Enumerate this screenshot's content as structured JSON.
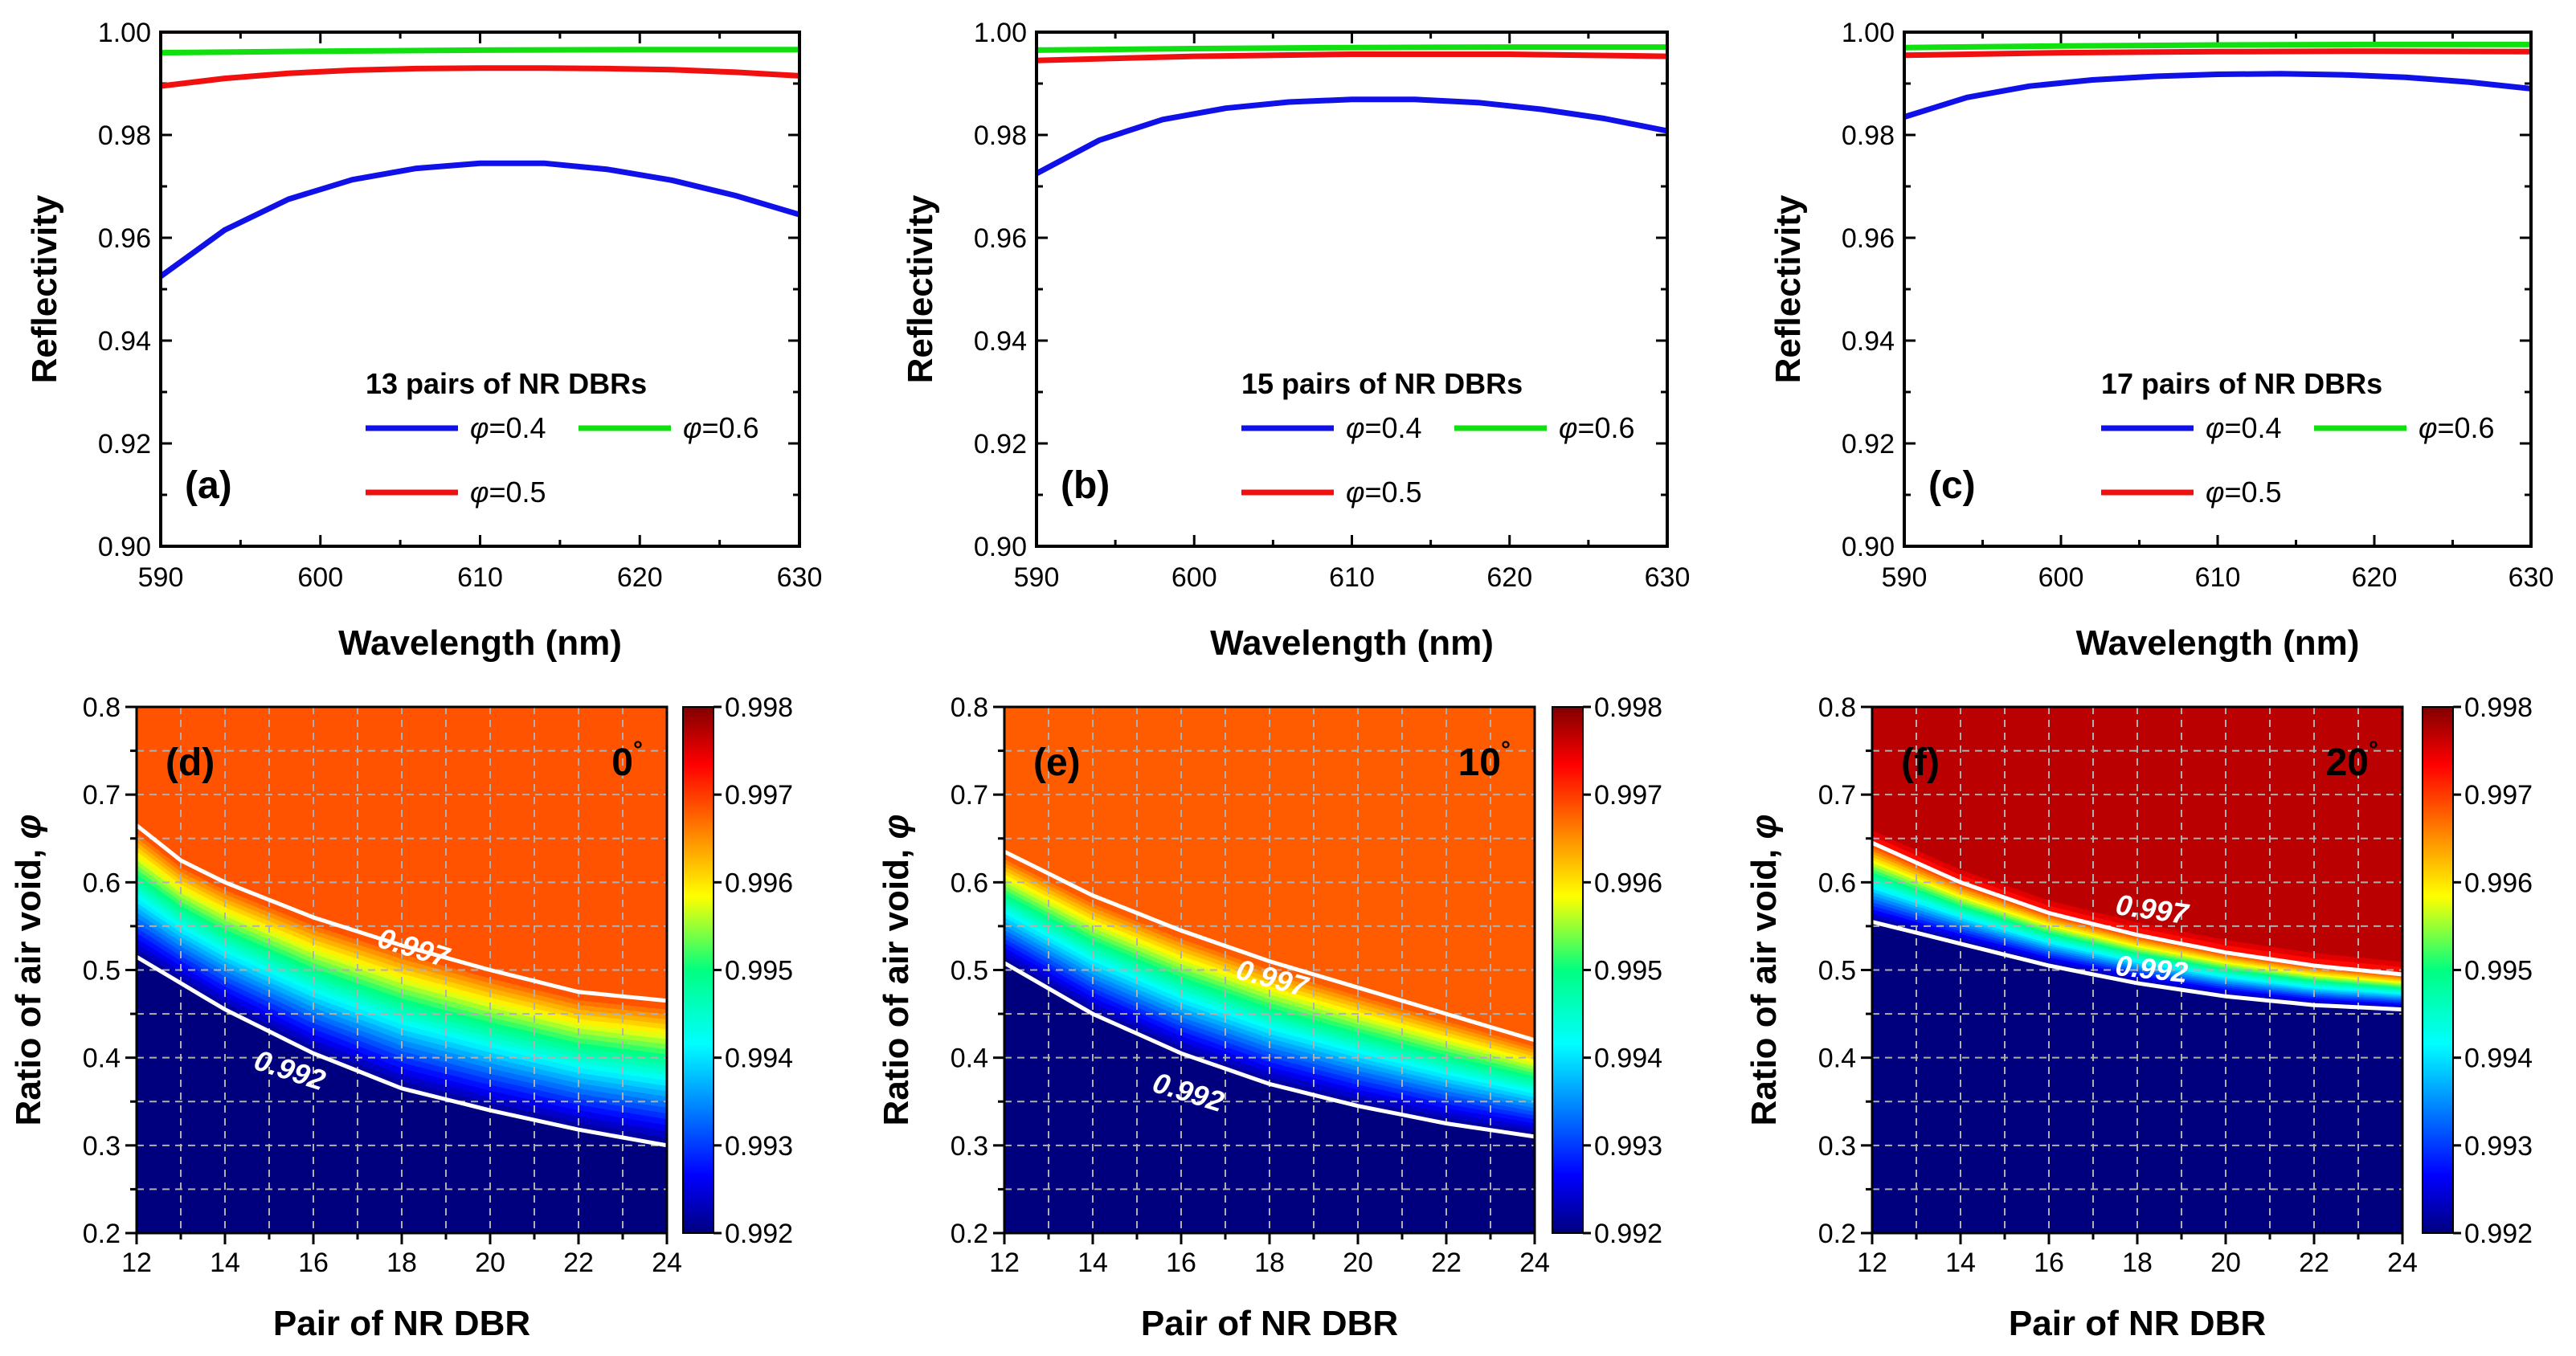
{
  "chart_data": [
    {
      "panel": "(a)",
      "type": "line",
      "xlabel": "Wavelength (nm)",
      "ylabel": "Reflectivity",
      "xlim": [
        590,
        630
      ],
      "ylim": [
        0.9,
        1.0
      ],
      "xticks": [
        "590",
        "600",
        "610",
        "620",
        "630"
      ],
      "yticks": [
        "0.90",
        "0.92",
        "0.94",
        "0.96",
        "0.98",
        "1.00"
      ],
      "legend_title": "13 pairs of NR DBRs",
      "series": [
        {
          "name": "φ=0.4",
          "symbol": "φ",
          "value_label": "=0.4",
          "color": "#1010e8",
          "x": [
            590,
            594,
            598,
            602,
            606,
            610,
            614,
            618,
            622,
            626,
            630
          ],
          "y": [
            0.9525,
            0.9615,
            0.9675,
            0.9713,
            0.9735,
            0.9745,
            0.9745,
            0.9733,
            0.9712,
            0.9682,
            0.9645
          ]
        },
        {
          "name": "φ=0.5",
          "symbol": "φ",
          "value_label": "=0.5",
          "color": "#f01010",
          "x": [
            590,
            594,
            598,
            602,
            606,
            610,
            614,
            618,
            622,
            626,
            630
          ],
          "y": [
            0.9895,
            0.991,
            0.992,
            0.9926,
            0.9929,
            0.993,
            0.993,
            0.9929,
            0.9927,
            0.9922,
            0.9915
          ]
        },
        {
          "name": "φ=0.6",
          "symbol": "φ",
          "value_label": "=0.6",
          "color": "#10e010",
          "x": [
            590,
            600,
            610,
            620,
            630
          ],
          "y": [
            0.996,
            0.9963,
            0.9965,
            0.9966,
            0.9966
          ]
        }
      ]
    },
    {
      "panel": "(b)",
      "type": "line",
      "xlabel": "Wavelength (nm)",
      "ylabel": "Reflectivity",
      "xlim": [
        590,
        630
      ],
      "ylim": [
        0.9,
        1.0
      ],
      "xticks": [
        "590",
        "600",
        "610",
        "620",
        "630"
      ],
      "yticks": [
        "0.90",
        "0.92",
        "0.94",
        "0.96",
        "0.98",
        "1.00"
      ],
      "legend_title": "15 pairs of NR DBRs",
      "series": [
        {
          "name": "φ=0.4",
          "symbol": "φ",
          "value_label": "=0.4",
          "color": "#1010e8",
          "x": [
            590,
            594,
            598,
            602,
            606,
            610,
            614,
            618,
            622,
            626,
            630
          ],
          "y": [
            0.9725,
            0.979,
            0.983,
            0.9852,
            0.9864,
            0.9869,
            0.9869,
            0.9863,
            0.985,
            0.9832,
            0.9808
          ]
        },
        {
          "name": "φ=0.5",
          "symbol": "φ",
          "value_label": "=0.5",
          "color": "#f01010",
          "x": [
            590,
            600,
            610,
            620,
            630
          ],
          "y": [
            0.9945,
            0.9953,
            0.9957,
            0.9957,
            0.9953
          ]
        },
        {
          "name": "φ=0.6",
          "symbol": "φ",
          "value_label": "=0.6",
          "color": "#10e010",
          "x": [
            590,
            600,
            610,
            620,
            630
          ],
          "y": [
            0.9965,
            0.9968,
            0.997,
            0.9971,
            0.9971
          ]
        }
      ]
    },
    {
      "panel": "(c)",
      "type": "line",
      "xlabel": "Wavelength (nm)",
      "ylabel": "Reflectivity",
      "xlim": [
        590,
        630
      ],
      "ylim": [
        0.9,
        1.0
      ],
      "xticks": [
        "590",
        "600",
        "610",
        "620",
        "630"
      ],
      "yticks": [
        "0.90",
        "0.92",
        "0.94",
        "0.96",
        "0.98",
        "1.00"
      ],
      "legend_title": "17 pairs of NR DBRs",
      "series": [
        {
          "name": "φ=0.4",
          "symbol": "φ",
          "value_label": "=0.4",
          "color": "#1010e8",
          "x": [
            590,
            594,
            598,
            602,
            606,
            610,
            614,
            618,
            622,
            626,
            630
          ],
          "y": [
            0.9835,
            0.9873,
            0.9895,
            0.9907,
            0.9914,
            0.9918,
            0.9919,
            0.9917,
            0.9912,
            0.9903,
            0.989
          ]
        },
        {
          "name": "φ=0.5",
          "symbol": "φ",
          "value_label": "=0.5",
          "color": "#f01010",
          "x": [
            590,
            600,
            610,
            620,
            630
          ],
          "y": [
            0.9955,
            0.996,
            0.9962,
            0.9963,
            0.9962
          ]
        },
        {
          "name": "φ=0.6",
          "symbol": "φ",
          "value_label": "=0.6",
          "color": "#10e010",
          "x": [
            590,
            600,
            610,
            620,
            630
          ],
          "y": [
            0.997,
            0.9973,
            0.9975,
            0.9976,
            0.9976
          ]
        }
      ]
    },
    {
      "panel": "(d)",
      "type": "heatmap",
      "angle_value": "0",
      "angle_unit": "°",
      "xlabel": "Pair of NR DBR",
      "ylabel": "Ratio of air void, ",
      "ylabel_symbol": "φ",
      "xlim": [
        12,
        24
      ],
      "ylim": [
        0.2,
        0.8
      ],
      "xticks": [
        "12",
        "14",
        "16",
        "18",
        "20",
        "22",
        "24"
      ],
      "yticks": [
        "0.2",
        "0.3",
        "0.4",
        "0.5",
        "0.6",
        "0.7",
        "0.8"
      ],
      "colorbar": {
        "range": [
          0.992,
          0.998
        ],
        "ticks": [
          "0.992",
          "0.993",
          "0.994",
          "0.995",
          "0.996",
          "0.997",
          "0.998"
        ]
      },
      "plateau_value": 0.99685,
      "contour_992": {
        "x": [
          12,
          14,
          16,
          18,
          20,
          22,
          24
        ],
        "y": [
          0.515,
          0.455,
          0.405,
          0.365,
          0.34,
          0.318,
          0.3
        ]
      },
      "contour_997": {
        "x": [
          12,
          13,
          14,
          16,
          18,
          20,
          22,
          24
        ],
        "y": [
          0.665,
          0.625,
          0.6,
          0.56,
          0.528,
          0.5,
          0.475,
          0.465
        ]
      },
      "contour_labels": [
        {
          "text": "0.997",
          "x": 18.2,
          "y": 0.515,
          "rot": 17
        },
        {
          "text": "0.992",
          "x": 15.4,
          "y": 0.375,
          "rot": 18
        }
      ]
    },
    {
      "panel": "(e)",
      "type": "heatmap",
      "angle_value": "10",
      "angle_unit": "°",
      "xlabel": "Pair of NR DBR",
      "ylabel": "Ratio of air void, ",
      "ylabel_symbol": "φ",
      "xlim": [
        12,
        24
      ],
      "ylim": [
        0.2,
        0.8
      ],
      "xticks": [
        "12",
        "14",
        "16",
        "18",
        "20",
        "22",
        "24"
      ],
      "yticks": [
        "0.2",
        "0.3",
        "0.4",
        "0.5",
        "0.6",
        "0.7",
        "0.8"
      ],
      "colorbar": {
        "range": [
          0.992,
          0.998
        ],
        "ticks": [
          "0.992",
          "0.993",
          "0.994",
          "0.995",
          "0.996",
          "0.997",
          "0.998"
        ]
      },
      "plateau_value": 0.9968,
      "contour_992": {
        "x": [
          12,
          14,
          16,
          18,
          20,
          22,
          24
        ],
        "y": [
          0.508,
          0.45,
          0.405,
          0.37,
          0.345,
          0.325,
          0.31
        ]
      },
      "contour_997": {
        "x": [
          12,
          14,
          16,
          18,
          20,
          22,
          24
        ],
        "y": [
          0.635,
          0.585,
          0.545,
          0.51,
          0.48,
          0.45,
          0.42
        ]
      },
      "contour_labels": [
        {
          "text": "0.997",
          "x": 18.0,
          "y": 0.48,
          "rot": 15
        },
        {
          "text": "0.992",
          "x": 16.1,
          "y": 0.35,
          "rot": 17
        }
      ]
    },
    {
      "panel": "(f)",
      "type": "heatmap",
      "angle_value": "20",
      "angle_unit": "°",
      "xlabel": "Pair of NR DBR",
      "ylabel": "Ratio of air void, ",
      "ylabel_symbol": "φ",
      "xlim": [
        12,
        24
      ],
      "ylim": [
        0.2,
        0.8
      ],
      "xticks": [
        "12",
        "14",
        "16",
        "18",
        "20",
        "22",
        "24"
      ],
      "yticks": [
        "0.2",
        "0.3",
        "0.4",
        "0.5",
        "0.6",
        "0.7",
        "0.8"
      ],
      "colorbar": {
        "range": [
          0.992,
          0.998
        ],
        "ticks": [
          "0.992",
          "0.993",
          "0.994",
          "0.995",
          "0.996",
          "0.997",
          "0.998"
        ]
      },
      "plateau_value": 0.9977,
      "contour_992": {
        "x": [
          12,
          14,
          16,
          18,
          20,
          22,
          24
        ],
        "y": [
          0.555,
          0.53,
          0.505,
          0.485,
          0.47,
          0.46,
          0.455
        ]
      },
      "contour_997": {
        "x": [
          12,
          14,
          16,
          18,
          20,
          22,
          24
        ],
        "y": [
          0.645,
          0.6,
          0.565,
          0.54,
          0.52,
          0.505,
          0.495
        ]
      },
      "contour_labels": [
        {
          "text": "0.997",
          "x": 18.3,
          "y": 0.558,
          "rot": 8
        },
        {
          "text": "0.992",
          "x": 18.3,
          "y": 0.49,
          "rot": 6
        }
      ]
    }
  ]
}
